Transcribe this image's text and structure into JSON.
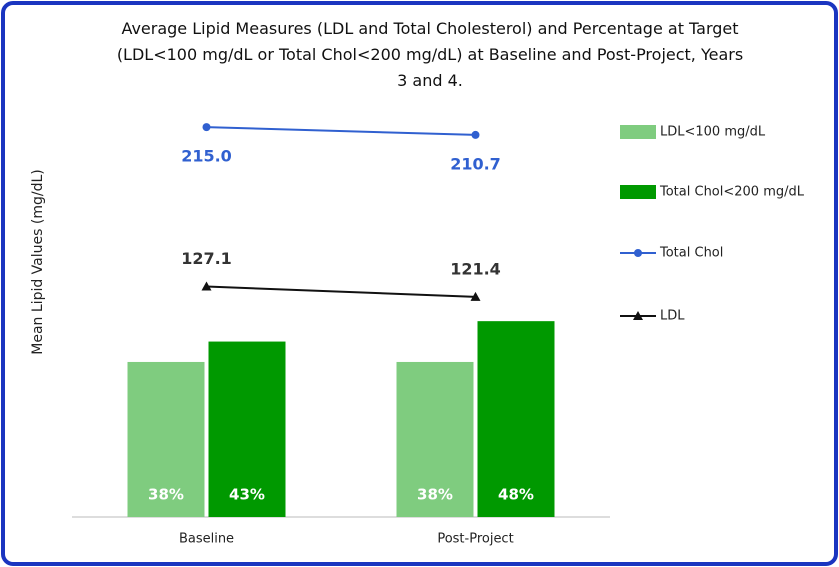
{
  "chart_data": {
    "type": "bar",
    "title": "Average Lipid Measures (LDL and Total Cholesterol) and Percentage at Target (LDL<100 mg/dL or Total Chol<200 mg/dL) at Baseline and Post-Project, Years 3 and 4.",
    "ylabel": "Mean Lipid Values (mg/dL)",
    "categories": [
      "Baseline",
      "Post-Project"
    ],
    "ylim": [
      0,
      225
    ],
    "y2lim": [
      0,
      100
    ],
    "legend": "right",
    "series": [
      {
        "name": "LDL<100 mg/dL",
        "type": "bar",
        "axis": "y2",
        "color": "#7fcc7f",
        "values": [
          38,
          38
        ],
        "value_labels": [
          "38%",
          "38%"
        ]
      },
      {
        "name": "Total Chol<200 mg/dL",
        "type": "bar",
        "axis": "y2",
        "color": "#009900",
        "values": [
          43,
          48
        ],
        "value_labels": [
          "43%",
          "48%"
        ]
      },
      {
        "name": "Total Chol",
        "type": "line",
        "marker": "circle",
        "color": "#3060d0",
        "values": [
          215.0,
          210.7
        ],
        "value_labels": [
          "215.0",
          "210.7"
        ]
      },
      {
        "name": "LDL",
        "type": "line",
        "marker": "triangle",
        "color": "#111111",
        "values": [
          127.1,
          121.4
        ],
        "value_labels": [
          "127.1",
          "121.4"
        ]
      }
    ]
  }
}
